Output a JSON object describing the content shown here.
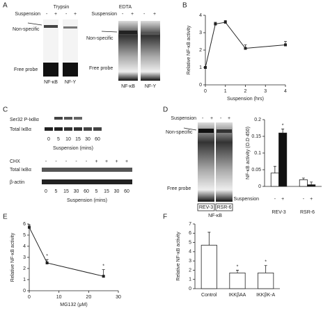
{
  "panels": [
    "A",
    "B",
    "C",
    "D",
    "E",
    "F"
  ],
  "gels": {
    "a_trypsin": {
      "title": "Trypsin",
      "row_label": "Suspension",
      "signs": [
        "-",
        "+",
        "-",
        "+"
      ],
      "band_label": "Non-specific",
      "probe_label": "Free probe",
      "lanes": [
        "NF-κB",
        "NF-Y"
      ]
    },
    "a_edta": {
      "title": "EDTA",
      "row_label": "Suspension",
      "signs": [
        "-",
        "+",
        "-",
        "+"
      ],
      "band_label": "Non-specific",
      "probe_label": "Free probe",
      "lanes": [
        "NF-κB",
        "NF-Y"
      ]
    },
    "c_top": {
      "rows": [
        "Ser32 P-IκBα",
        "Total IκBα"
      ],
      "times": [
        "0",
        "5",
        "10",
        "15",
        "30",
        "60"
      ],
      "xlabel": "Suspension (mins)"
    },
    "c_bottom": {
      "treat_label": "CHX",
      "signs": [
        "-",
        "-",
        "-",
        "-",
        "-",
        "+",
        "+",
        "+",
        "+"
      ],
      "rows": [
        "Total IκBα",
        "β-actin"
      ],
      "times": [
        "0",
        "5",
        "15",
        "30",
        "60",
        "5",
        "15",
        "30",
        "60"
      ],
      "xlabel": "Suspension (mins)"
    },
    "d_left": {
      "row_label": "Suspension",
      "signs": [
        "-",
        "+",
        "-",
        "+"
      ],
      "band_label": "Non-specific",
      "probe_label": "Free probe",
      "lanes": [
        "REV-3",
        "RSR-6"
      ],
      "group": "NF-κB"
    }
  },
  "chart_data": [
    {
      "type": "line",
      "ylabel": "Relative NF-κB activity",
      "xlabel": "Suspension (hrs)",
      "x": [
        0,
        0.5,
        1,
        2,
        4
      ],
      "values": [
        1,
        3.5,
        3.6,
        2.1,
        2.3
      ],
      "errors": [
        0.05,
        0.1,
        0.1,
        0.2,
        0.2
      ],
      "xlim": [
        0,
        4
      ],
      "xticks": [
        0,
        1,
        2,
        3,
        4
      ],
      "ylim": [
        0,
        4
      ],
      "yticks": [
        0,
        1,
        2,
        3,
        4
      ],
      "color": "#222"
    },
    {
      "type": "bar",
      "ylabel": "NF-κB activity (O.D 450)",
      "legend_label": "Suspension",
      "categories": [
        "REV-3",
        "RSR-6"
      ],
      "series": [
        {
          "name": "-",
          "color": "#ffffff",
          "values": [
            0.04,
            0.02
          ],
          "errors": [
            0.02,
            0.005
          ]
        },
        {
          "name": "+",
          "color": "#111111",
          "values": [
            0.16,
            0.005
          ],
          "errors": [
            0.012,
            0.008
          ]
        }
      ],
      "ylim": [
        0,
        0.2
      ],
      "yticks": [
        0,
        0.05,
        0.1,
        0.15,
        0.2
      ],
      "annotations": [
        "*"
      ]
    },
    {
      "type": "line",
      "ylabel": "Relative NF-κB activity",
      "xlabel": "MG132 (μM)",
      "x": [
        0,
        6,
        25
      ],
      "values": [
        5.7,
        2.5,
        1.3
      ],
      "errors": [
        0.2,
        0.3,
        0.6
      ],
      "xlim": [
        0,
        30
      ],
      "xticks": [
        0,
        10,
        20,
        30
      ],
      "ylim": [
        0,
        6
      ],
      "yticks": [
        0,
        1,
        2,
        3,
        4,
        5,
        6
      ],
      "color": "#222",
      "annotations": [
        "*",
        "*"
      ]
    },
    {
      "type": "bar",
      "ylabel": "Relative NF-κB activity",
      "categories": [
        "Control",
        "IKKβAA",
        "IKKβK-A"
      ],
      "values": [
        4.7,
        1.7,
        1.7
      ],
      "errors": [
        1.4,
        0.3,
        0.8
      ],
      "ylim": [
        0,
        7
      ],
      "yticks": [
        0,
        1,
        2,
        3,
        4,
        5,
        6,
        7
      ],
      "color": "#ffffff",
      "annotations": [
        "*",
        "*"
      ]
    }
  ]
}
